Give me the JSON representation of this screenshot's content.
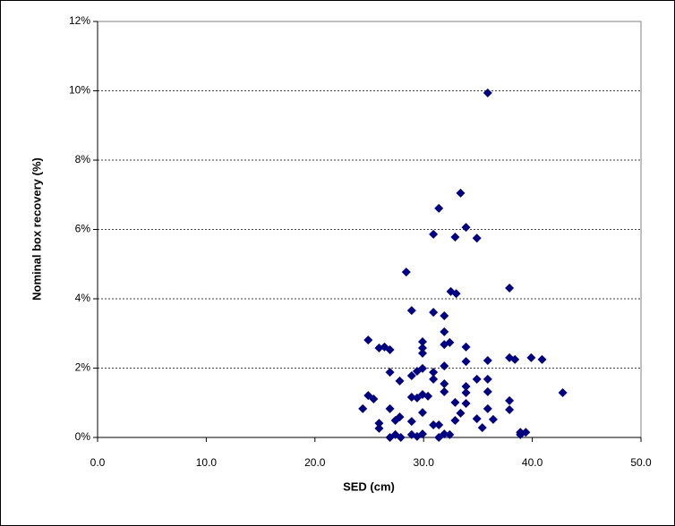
{
  "chart_data": {
    "type": "scatter",
    "x_label": "SED (cm)",
    "y_label": "Nominal box recovery (%)",
    "color": "#000080",
    "grid": true,
    "xlim": [
      0,
      50
    ],
    "ylim": [
      0,
      12
    ],
    "xticks": [
      {
        "value": 0,
        "label": "0.0"
      },
      {
        "value": 10,
        "label": "10.0"
      },
      {
        "value": 20,
        "label": "20.0"
      },
      {
        "value": 30,
        "label": "30.0"
      },
      {
        "value": 40,
        "label": "40.0"
      },
      {
        "value": 50,
        "label": "50.0"
      }
    ],
    "yticks": [
      {
        "value": 0,
        "label": "0%"
      },
      {
        "value": 2,
        "label": "2%"
      },
      {
        "value": 4,
        "label": "4%"
      },
      {
        "value": 6,
        "label": "6%"
      },
      {
        "value": 8,
        "label": "8%"
      },
      {
        "value": 10,
        "label": "10%"
      },
      {
        "value": 12,
        "label": "12%"
      }
    ],
    "x": [
      35.9,
      33.4,
      31.4,
      33.9,
      30.9,
      32.9,
      34.9,
      28.4,
      37.9,
      32.5,
      33.0,
      28.9,
      30.9,
      31.9,
      31.9,
      24.9,
      29.9,
      32.4,
      31.9,
      26.4,
      25.9,
      26.9,
      29.9,
      29.9,
      33.9,
      37.9,
      38.4,
      35.9,
      33.9,
      39.9,
      40.9,
      31.9,
      29.9,
      29.4,
      26.9,
      30.9,
      28.9,
      27.8,
      30.9,
      34.9,
      35.9,
      31.9,
      33.9,
      42.8,
      35.9,
      33.9,
      31.9,
      24.9,
      29.9,
      30.4,
      28.9,
      29.4,
      25.4,
      37.9,
      33.9,
      32.9,
      24.4,
      26.9,
      35.9,
      37.9,
      29.9,
      33.4,
      27.8,
      27.4,
      34.9,
      36.4,
      32.9,
      28.9,
      25.9,
      30.9,
      31.4,
      35.4,
      25.9,
      38.9,
      39.4,
      38.9,
      28.9,
      29.9,
      29.4,
      27.4,
      27.9,
      26.9,
      31.4,
      31.9,
      32.4
    ],
    "values": [
      9.94,
      7.05,
      6.61,
      6.06,
      5.86,
      5.78,
      5.75,
      4.77,
      4.31,
      4.21,
      4.15,
      3.66,
      3.61,
      3.51,
      3.05,
      2.81,
      2.76,
      2.74,
      2.68,
      2.61,
      2.58,
      2.53,
      2.58,
      2.43,
      2.61,
      2.3,
      2.25,
      2.22,
      2.19,
      2.3,
      2.25,
      2.06,
      1.99,
      1.91,
      1.88,
      1.88,
      1.78,
      1.63,
      1.68,
      1.68,
      1.68,
      1.55,
      1.47,
      1.29,
      1.32,
      1.29,
      1.32,
      1.21,
      1.24,
      1.19,
      1.16,
      1.14,
      1.11,
      1.06,
      0.98,
      1.01,
      0.83,
      0.83,
      0.83,
      0.8,
      0.72,
      0.7,
      0.59,
      0.49,
      0.54,
      0.52,
      0.49,
      0.46,
      0.41,
      0.36,
      0.36,
      0.28,
      0.26,
      0.15,
      0.15,
      0.08,
      0.08,
      0.1,
      0.03,
      0.08,
      0,
      0,
      0,
      0.1,
      0.08
    ]
  }
}
